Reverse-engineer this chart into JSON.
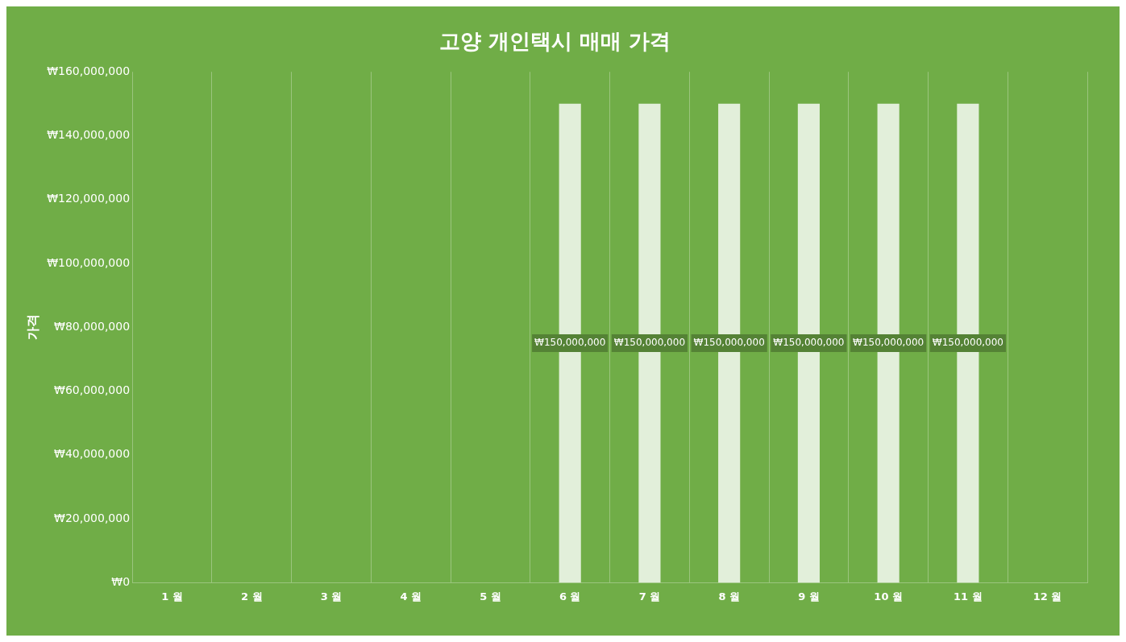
{
  "chart_data": {
    "type": "bar",
    "title": "고양 개인택시 매매 가격",
    "ylabel": "가격",
    "categories": [
      "1 월",
      "2 월",
      "3 월",
      "4 월",
      "5 월",
      "6 월",
      "7 월",
      "8 월",
      "9 월",
      "10 월",
      "11 월",
      "12 월"
    ],
    "values": [
      null,
      null,
      null,
      null,
      null,
      150000000,
      150000000,
      150000000,
      150000000,
      150000000,
      150000000,
      null
    ],
    "value_labels": [
      null,
      null,
      null,
      null,
      null,
      "₩150,000,000",
      "₩150,000,000",
      "₩150,000,000",
      "₩150,000,000",
      "₩150,000,000",
      "₩150,000,000",
      null
    ],
    "color": "#e2efda",
    "ylim": [
      0,
      160000000
    ],
    "yticks": [
      {
        "value": 0,
        "label": "₩0"
      },
      {
        "value": 20000000,
        "label": "₩20,000,000"
      },
      {
        "value": 40000000,
        "label": "₩40,000,000"
      },
      {
        "value": 60000000,
        "label": "₩60,000,000"
      },
      {
        "value": 80000000,
        "label": "₩80,000,000"
      },
      {
        "value": 100000000,
        "label": "₩100,000,000"
      },
      {
        "value": 120000000,
        "label": "₩120,000,000"
      },
      {
        "value": 140000000,
        "label": "₩140,000,000"
      },
      {
        "value": 160000000,
        "label": "₩160,000,000"
      }
    ],
    "grid": "x",
    "legend": false
  }
}
